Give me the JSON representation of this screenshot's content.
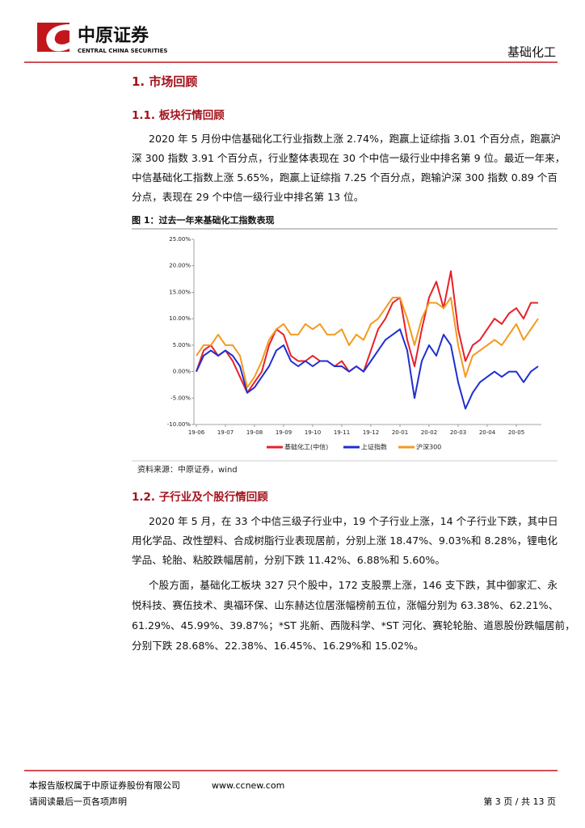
{
  "header": {
    "brand": "中原证券",
    "brand_en": "CENTRAL CHINA SECURITIES",
    "sector": "基础化工"
  },
  "heading_1": "1. 市场回顾",
  "section_1_1": {
    "heading": "1.1. 板块行情回顾",
    "paragraphs": [
      [
        "2020 年 5 月份中信基础化工行业指数上涨 2.74%，跑赢上证综指 3.01 个百分点，跑赢沪",
        "深 300 指数 3.91 个百分点，行业整体表现在 30 个中信一级行业中排名第 9 位。最近一年来，",
        "中信基础化工指数上涨 5.65%，跑赢上证综指 7.25 个百分点，跑输沪深 300 指数 0.89 个百",
        "分点，表现在 29 个中信一级行业中排名第 13 位。"
      ]
    ]
  },
  "figure": {
    "caption": "图 1：过去一年来基础化工指数表现",
    "source": "资料来源：中原证券，wind"
  },
  "chart_data": {
    "type": "line",
    "categories": [
      "19-06",
      null,
      null,
      null,
      "19-07",
      null,
      null,
      null,
      "19-08",
      null,
      null,
      null,
      "19-09",
      null,
      null,
      null,
      "19-10",
      null,
      null,
      null,
      "19-11",
      null,
      null,
      null,
      "19-12",
      null,
      null,
      null,
      "20-01",
      null,
      null,
      null,
      "20-02",
      null,
      null,
      null,
      "20-03",
      null,
      null,
      null,
      "20-04",
      null,
      null,
      null,
      "20-05",
      null,
      null,
      null
    ],
    "series": [
      {
        "name": "基础化工(中信)",
        "color": "#e8202a",
        "values": [
          0,
          4,
          5,
          3,
          4,
          2,
          -1,
          -4,
          -2,
          0,
          5,
          8,
          7,
          3,
          2,
          2,
          3,
          2,
          2,
          1,
          2,
          0,
          1,
          0,
          4,
          8,
          10,
          13,
          14,
          6,
          1,
          8,
          14,
          17,
          12,
          19,
          8,
          2,
          5,
          6,
          8,
          10,
          9,
          11,
          12,
          10,
          13,
          13
        ]
      },
      {
        "name": "上证指数",
        "color": "#1f2fd0",
        "values": [
          0,
          3,
          4,
          3,
          4,
          3,
          1,
          -4,
          -3,
          -1,
          1,
          4,
          5,
          2,
          1,
          2,
          1,
          2,
          2,
          1,
          1,
          0,
          1,
          0,
          2,
          4,
          6,
          7,
          8,
          4,
          -5,
          2,
          5,
          3,
          7,
          5,
          -2,
          -7,
          -4,
          -2,
          -1,
          0,
          -1,
          0,
          0,
          -2,
          0,
          1
        ]
      },
      {
        "name": "沪深300",
        "color": "#f39a1e",
        "values": [
          3,
          5,
          5,
          7,
          5,
          5,
          3,
          -3,
          -1,
          2,
          6,
          8,
          9,
          7,
          7,
          9,
          8,
          9,
          7,
          7,
          8,
          5,
          7,
          6,
          9,
          10,
          12,
          14,
          14,
          10,
          5,
          10,
          13,
          13,
          12,
          14,
          5,
          -1,
          3,
          4,
          5,
          6,
          5,
          7,
          9,
          6,
          8,
          10
        ]
      }
    ],
    "ylim": [
      -10,
      25
    ],
    "yticks": [
      {
        "value": -10,
        "label": "-10.00%"
      },
      {
        "value": -5,
        "label": "-5.00%"
      },
      {
        "value": 0,
        "label": "0.00%"
      },
      {
        "value": 5,
        "label": "5.00%"
      },
      {
        "value": 10,
        "label": "10.00%"
      },
      {
        "value": 15,
        "label": "15.00%"
      },
      {
        "value": 20,
        "label": "20.00%"
      },
      {
        "value": 25,
        "label": "25.00%"
      }
    ],
    "legend": "bottom"
  },
  "section_1_2": {
    "heading": "1.2. 子行业及个股行情回顾",
    "paragraphs": [
      [
        "2020 年 5 月，在 33 个中信三级子行业中，19 个子行业上涨，14 个子行业下跌，其中日",
        "用化学品、改性塑料、合成树脂行业表现居前，分别上涨 18.47%、9.03%和 8.28%，锂电化",
        "学品、轮胎、粘胶跌幅居前，分别下跌 11.42%、6.88%和 5.60%。"
      ],
      [
        "个股方面，基础化工板块 327 只个股中，172 支股票上涨，146 支下跌，其中御家汇、永",
        "悦科技、赛伍技术、奥福环保、山东赫达位居涨幅榜前五位，涨幅分别为 63.38%、62.21%、",
        "61.29%、45.99%、39.87%；*ST 兆新、西陇科学、*ST 河化、赛轮轮胎、道恩股份跌幅居前，",
        "分别下跌 28.68%、22.38%、16.45%、16.29%和 15.02%。"
      ]
    ]
  },
  "footer": {
    "copyright": "本报告版权属于中原证券股份有限公司",
    "website": "www.ccnew.com",
    "notice": "请阅读最后一页各项声明",
    "page": "第 3 页 / 共 13 页"
  }
}
